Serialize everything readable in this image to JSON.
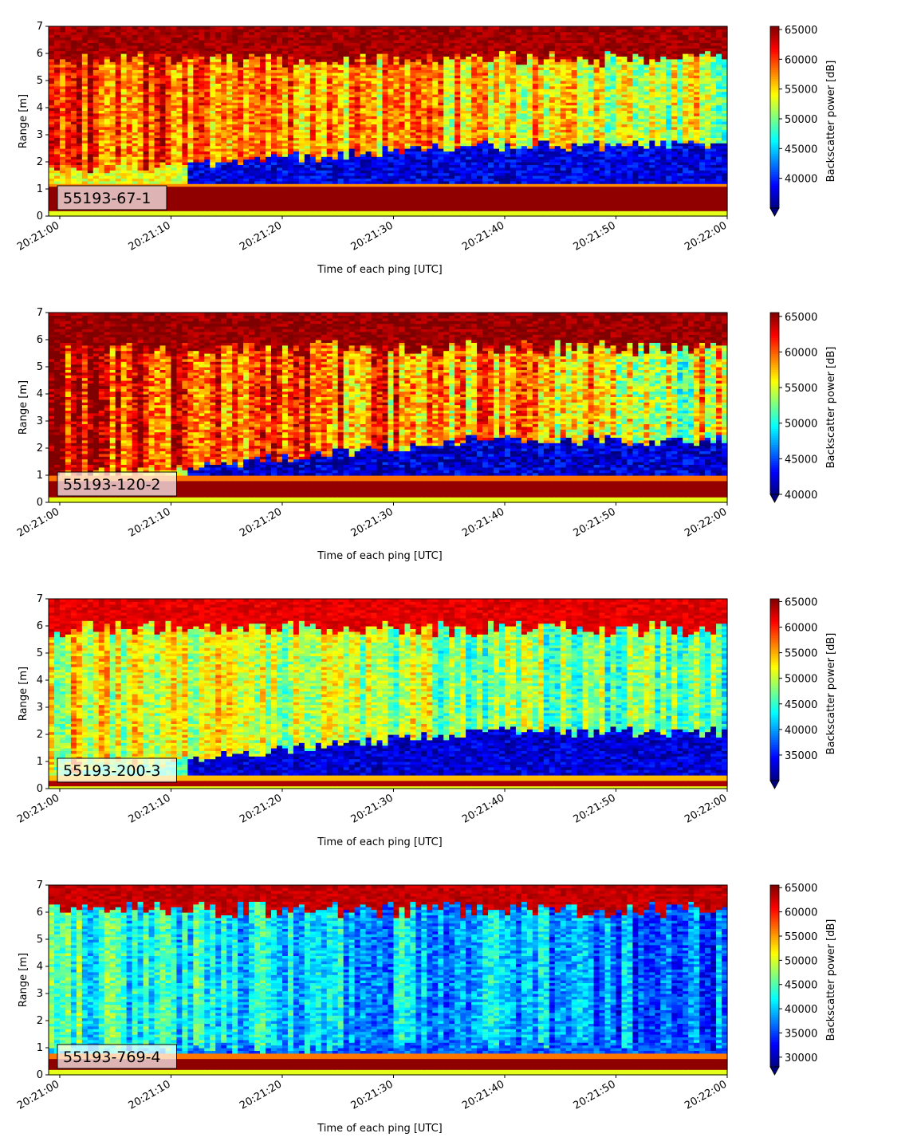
{
  "figure": {
    "xlabel": "Time of each ping [UTC]",
    "ylabel": "Range [m]",
    "colorbar_label": "Backscatter power [dB]",
    "colormap": "jet",
    "x_ticks": [
      "20:21:00",
      "20:21:10",
      "20:21:20",
      "20:21:30",
      "20:21:40",
      "20:21:50",
      "20:22:00"
    ],
    "y_ticks": [
      "0",
      "1",
      "2",
      "3",
      "4",
      "5",
      "6",
      "7"
    ],
    "colormap_stops": [
      "#00007f",
      "#0000ff",
      "#007fff",
      "#00ffff",
      "#7fff7f",
      "#ffff00",
      "#ff7f00",
      "#ff0000",
      "#7f0000"
    ]
  },
  "chart_data": [
    {
      "type": "heatmap",
      "label": "55193-67-1",
      "x_range": [
        "20:20:59",
        "20:22:00"
      ],
      "ylim": [
        0,
        7
      ],
      "clim": [
        35000,
        65535
      ],
      "colorbar_ticks": [
        "40000",
        "45000",
        "50000",
        "55000",
        "60000",
        "65000"
      ],
      "colorbar_extend": "min",
      "profile": {
        "near_band": {
          "from": 0.25,
          "to": 1.1,
          "level": 65000
        },
        "layer_boundary_start": 1.6,
        "layer_boundary_end": 2.6,
        "layer_level": 38000,
        "upper_level_start": 61000,
        "upper_level_end": 52000,
        "surface_from": 6.1,
        "surface_level": 64500
      }
    },
    {
      "type": "heatmap",
      "label": "55193-120-2",
      "x_range": [
        "20:20:59",
        "20:22:00"
      ],
      "ylim": [
        0,
        7
      ],
      "clim": [
        40000,
        65535
      ],
      "colorbar_ticks": [
        "40000",
        "45000",
        "50000",
        "55000",
        "60000",
        "65000"
      ],
      "colorbar_extend": "min",
      "profile": {
        "near_band": {
          "from": 0.2,
          "to": 0.85,
          "level": 65000
        },
        "layer_boundary_start": 0.9,
        "layer_boundary_end": 2.3,
        "layer_level": 42000,
        "upper_level_start": 63500,
        "upper_level_end": 55000,
        "surface_from": 6.0,
        "surface_level": 65000
      }
    },
    {
      "type": "heatmap",
      "label": "55193-200-3",
      "x_range": [
        "20:20:59",
        "20:22:00"
      ],
      "ylim": [
        0,
        7
      ],
      "clim": [
        30000,
        65535
      ],
      "colorbar_ticks": [
        "35000",
        "40000",
        "45000",
        "50000",
        "55000",
        "60000",
        "65000"
      ],
      "colorbar_extend": "min",
      "profile": {
        "near_band": {
          "from": 0.1,
          "to": 0.35,
          "level": 64000
        },
        "layer_boundary_start": 0.6,
        "layer_boundary_end": 2.1,
        "layer_level": 33000,
        "upper_level_start": 52000,
        "upper_level_end": 46000,
        "surface_from": 6.2,
        "surface_level": 62000
      }
    },
    {
      "type": "heatmap",
      "label": "55193-769-4",
      "x_range": [
        "20:20:59",
        "20:22:00"
      ],
      "ylim": [
        0,
        7
      ],
      "clim": [
        28000,
        65535
      ],
      "colorbar_ticks": [
        "30000",
        "35000",
        "40000",
        "45000",
        "50000",
        "55000",
        "60000",
        "65000"
      ],
      "colorbar_extend": "min",
      "profile": {
        "near_band": {
          "from": 0.25,
          "to": 0.65,
          "level": 65000
        },
        "layer_boundary_start": 0.9,
        "layer_boundary_end": 1.1,
        "layer_level": 36000,
        "upper_level_start": 44000,
        "upper_level_end": 36000,
        "surface_from": 6.4,
        "surface_level": 63000
      }
    }
  ]
}
